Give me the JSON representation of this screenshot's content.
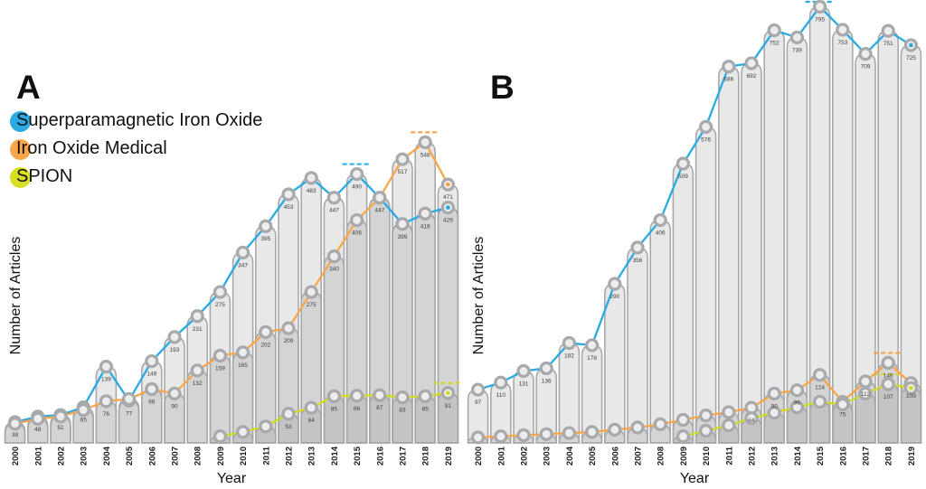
{
  "figure": {
    "panel_a_label": "A",
    "panel_b_label": "B",
    "ylabel": "Number of Articles",
    "xlabel": "Year",
    "bar_fill_rgba": "rgba(109,110,113,0.16)",
    "bar_stroke": "#a7a9ac",
    "marker_fill": "#ededee",
    "legend": [
      {
        "label": "Superparamagnetic Iron Oxide",
        "color": "#29abe2"
      },
      {
        "label": "Iron Oxide Medical",
        "color": "#f9a64a"
      },
      {
        "label": "SPION",
        "color": "#d7df23"
      }
    ]
  },
  "chart_data": [
    {
      "panel": "A",
      "type": "bar",
      "title": "",
      "xlabel": "Year",
      "ylabel": "Number of Articles",
      "ylim": [
        0,
        560
      ],
      "legend_position": "top-left",
      "grid": false,
      "categories": [
        "2000",
        "2001",
        "2002",
        "2003",
        "2004",
        "2005",
        "2006",
        "2007",
        "2008",
        "2009",
        "2010",
        "2011",
        "2012",
        "2013",
        "2014",
        "2015",
        "2016",
        "2017",
        "2018",
        "2019"
      ],
      "series": [
        {
          "name": "Superparamagnetic Iron Oxide",
          "color": "#29abe2",
          "values": [
            38,
            48,
            51,
            65,
            139,
            77,
            149,
            193,
            231,
            275,
            347,
            395,
            453,
            483,
            447,
            490,
            447,
            399,
            418,
            429
          ],
          "labels": [
            "38",
            "48",
            "51",
            "65",
            "139",
            "77",
            "149",
            "193",
            "231",
            "275",
            "347",
            "395",
            "453",
            "483",
            "447",
            "490",
            "447",
            "399",
            "418",
            "429"
          ]
        },
        {
          "name": "Iron Oxide Medical",
          "color": "#f9a64a",
          "values": [
            35,
            44,
            48,
            60,
            76,
            80,
            98,
            90,
            132,
            159,
            165,
            202,
            209,
            275,
            340,
            406,
            447,
            517,
            548,
            471
          ],
          "labels": [
            "",
            "",
            "",
            "",
            "76",
            "",
            "98",
            "90",
            "132",
            "159",
            "165",
            "202",
            "209",
            "275",
            "340",
            "406",
            "",
            "517",
            "548",
            "471"
          ]
        },
        {
          "name": "SPION",
          "color": "#d2d926",
          "values": [
            null,
            null,
            null,
            null,
            null,
            null,
            null,
            null,
            null,
            12,
            20,
            30,
            53,
            64,
            85,
            86,
            87,
            83,
            85,
            91
          ],
          "labels": [
            "",
            "",
            "",
            "",
            "",
            "",
            "",
            "",
            "",
            "",
            "",
            "",
            "53",
            "64",
            "85",
            "86",
            "87",
            "83",
            "85",
            "91"
          ]
        }
      ]
    },
    {
      "panel": "B",
      "type": "bar",
      "title": "",
      "xlabel": "Year",
      "ylabel": "Number of Articles",
      "ylim": [
        0,
        800
      ],
      "legend_position": "none",
      "grid": false,
      "categories": [
        "2000",
        "2001",
        "2002",
        "2003",
        "2004",
        "2005",
        "2006",
        "2007",
        "2008",
        "2009",
        "2010",
        "2011",
        "2012",
        "2013",
        "2014",
        "2015",
        "2016",
        "2017",
        "2018",
        "2019"
      ],
      "series": [
        {
          "name": "Superparamagnetic Iron Oxide",
          "color": "#29abe2",
          "values": [
            97,
            110,
            131,
            136,
            182,
            178,
            290,
            356,
            406,
            509,
            576,
            686,
            692,
            752,
            739,
            795,
            753,
            709,
            751,
            725
          ],
          "labels": [
            "97",
            "110",
            "131",
            "136",
            "182",
            "178",
            "290",
            "356",
            "406",
            "509",
            "576",
            "686",
            "692",
            "752",
            "739",
            "795",
            "753",
            "709",
            "751",
            "725"
          ]
        },
        {
          "name": "Iron Oxide Medical",
          "color": "#f9a64a",
          "values": [
            10,
            12,
            14,
            16,
            18,
            20,
            24,
            28,
            34,
            42,
            50,
            56,
            64,
            90,
            96,
            124,
            75,
            112,
            146,
            109
          ],
          "labels": [
            "",
            "",
            "",
            "",
            "",
            "",
            "",
            "",
            "",
            "",
            "",
            "",
            "64",
            "90",
            "96",
            "124",
            "75",
            "112",
            "146",
            "109"
          ]
        },
        {
          "name": "SPION",
          "color": "#d2d926",
          "values": [
            null,
            null,
            null,
            null,
            null,
            null,
            null,
            null,
            null,
            12,
            22,
            32,
            45,
            55,
            65,
            75,
            70,
            90,
            107,
            100
          ],
          "labels": [
            "",
            "",
            "",
            "",
            "",
            "",
            "",
            "",
            "",
            "",
            "",
            "",
            "",
            "",
            "",
            "",
            "",
            "",
            "107",
            ""
          ]
        }
      ]
    }
  ]
}
